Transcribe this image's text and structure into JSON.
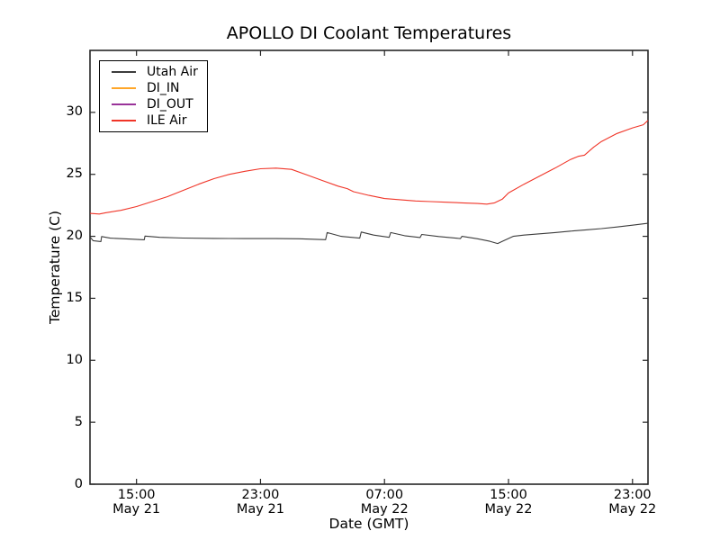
{
  "figure": {
    "title": "APOLLO DI Coolant Temperatures",
    "xlabel": "Date (GMT)",
    "ylabel": "Temperature (C)"
  },
  "chart_data": {
    "type": "line",
    "title": "APOLLO DI Coolant Temperatures",
    "xlabel": "Date (GMT)",
    "ylabel": "Temperature (C)",
    "x_hours_measured_from": "May 21 12:00 GMT",
    "xlim_hours": [
      0,
      36
    ],
    "ylim": [
      0,
      35
    ],
    "yticks": [
      0,
      5,
      10,
      15,
      20,
      25,
      30
    ],
    "xticks": [
      {
        "hour": 3,
        "time": "15:00",
        "date": "May 21"
      },
      {
        "hour": 11,
        "time": "23:00",
        "date": "May 21"
      },
      {
        "hour": 19,
        "time": "07:00",
        "date": "May 22"
      },
      {
        "hour": 27,
        "time": "15:00",
        "date": "May 22"
      },
      {
        "hour": 35,
        "time": "23:00",
        "date": "May 22"
      }
    ],
    "grid": false,
    "legend_position": "upper-left",
    "series": [
      {
        "name": "Utah Air",
        "color": "#3c3c3c",
        "points": [
          [
            0,
            19.95
          ],
          [
            0.2,
            19.65
          ],
          [
            0.7,
            19.58
          ],
          [
            0.75,
            19.98
          ],
          [
            1.3,
            19.85
          ],
          [
            2.5,
            19.78
          ],
          [
            3.5,
            19.72
          ],
          [
            3.55,
            20.02
          ],
          [
            4.5,
            19.92
          ],
          [
            6,
            19.86
          ],
          [
            8,
            19.83
          ],
          [
            10,
            19.82
          ],
          [
            12,
            19.82
          ],
          [
            13.5,
            19.8
          ],
          [
            15.2,
            19.73
          ],
          [
            15.3,
            20.3
          ],
          [
            16.2,
            20.0
          ],
          [
            17.4,
            19.85
          ],
          [
            17.5,
            20.35
          ],
          [
            18.3,
            20.1
          ],
          [
            19.3,
            19.92
          ],
          [
            19.4,
            20.3
          ],
          [
            20.3,
            20.05
          ],
          [
            21.3,
            19.9
          ],
          [
            21.4,
            20.15
          ],
          [
            22.5,
            19.98
          ],
          [
            23.9,
            19.82
          ],
          [
            24.0,
            20.0
          ],
          [
            25.0,
            19.8
          ],
          [
            25.8,
            19.6
          ],
          [
            26.3,
            19.42
          ],
          [
            26.7,
            19.65
          ],
          [
            27.3,
            20.0
          ],
          [
            28,
            20.1
          ],
          [
            29,
            20.2
          ],
          [
            30,
            20.3
          ],
          [
            31,
            20.42
          ],
          [
            32,
            20.52
          ],
          [
            33,
            20.62
          ],
          [
            34,
            20.75
          ],
          [
            35,
            20.9
          ],
          [
            36,
            21.05
          ]
        ]
      },
      {
        "name": "DI_IN",
        "color": "#ffa629",
        "points": []
      },
      {
        "name": "DI_OUT",
        "color": "#993399",
        "points": []
      },
      {
        "name": "ILE Air",
        "color": "#f03528",
        "points": [
          [
            0,
            21.85
          ],
          [
            0.6,
            21.8
          ],
          [
            1,
            21.9
          ],
          [
            2,
            22.1
          ],
          [
            3,
            22.4
          ],
          [
            4,
            22.8
          ],
          [
            5,
            23.2
          ],
          [
            6,
            23.7
          ],
          [
            7,
            24.2
          ],
          [
            8,
            24.65
          ],
          [
            9,
            25.0
          ],
          [
            10,
            25.25
          ],
          [
            11,
            25.45
          ],
          [
            12,
            25.5
          ],
          [
            13,
            25.4
          ],
          [
            14,
            24.95
          ],
          [
            15,
            24.5
          ],
          [
            16,
            24.05
          ],
          [
            16.6,
            23.85
          ],
          [
            17,
            23.6
          ],
          [
            18,
            23.3
          ],
          [
            19,
            23.05
          ],
          [
            20,
            22.95
          ],
          [
            21,
            22.85
          ],
          [
            22,
            22.8
          ],
          [
            23,
            22.75
          ],
          [
            24,
            22.7
          ],
          [
            25,
            22.65
          ],
          [
            25.6,
            22.6
          ],
          [
            26.1,
            22.7
          ],
          [
            26.6,
            23.0
          ],
          [
            27,
            23.5
          ],
          [
            28,
            24.2
          ],
          [
            29,
            24.85
          ],
          [
            30,
            25.5
          ],
          [
            31,
            26.2
          ],
          [
            31.5,
            26.45
          ],
          [
            31.9,
            26.55
          ],
          [
            32.5,
            27.2
          ],
          [
            33,
            27.65
          ],
          [
            34,
            28.3
          ],
          [
            35,
            28.75
          ],
          [
            35.7,
            29.0
          ],
          [
            36,
            29.35
          ]
        ]
      }
    ]
  }
}
